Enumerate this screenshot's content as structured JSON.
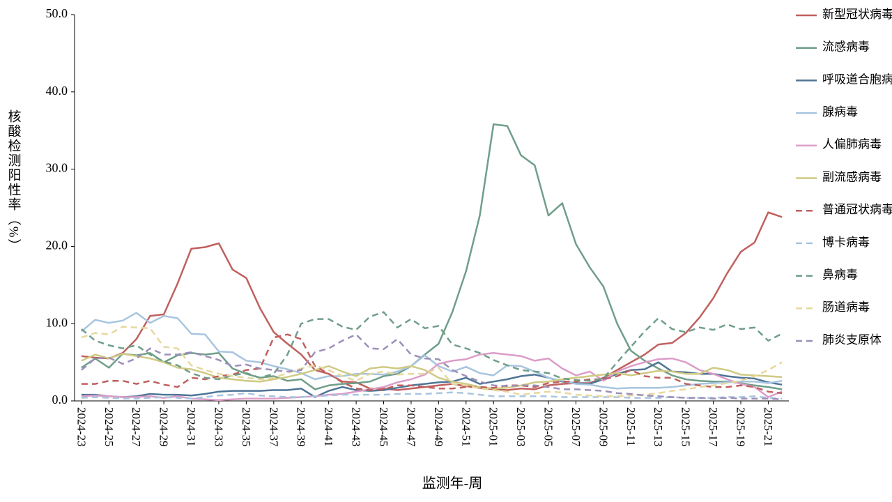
{
  "chart_data": {
    "type": "line",
    "x_label": "监测年-周",
    "y_label": "核酸检测阳性率（%）",
    "categories": [
      "2024-23",
      null,
      "2024-25",
      null,
      "2024-27",
      null,
      "2024-29",
      null,
      "2024-31",
      null,
      "2024-33",
      null,
      "2024-35",
      null,
      "2024-37",
      null,
      "2024-39",
      null,
      "2024-41",
      null,
      "2024-43",
      null,
      "2024-45",
      null,
      "2024-47",
      null,
      "2024-49",
      null,
      "2024-51",
      null,
      "2025-01",
      null,
      "2025-03",
      null,
      "2025-05",
      null,
      "2025-07",
      null,
      "2025-09",
      null,
      "2025-11",
      null,
      "2025-13",
      null,
      "2025-15",
      null,
      "2025-17",
      null,
      "2025-19",
      null,
      "2025-21",
      null
    ],
    "ylim": [
      0,
      50
    ],
    "yticks": [
      {
        "value": 0,
        "label": "0.0"
      },
      {
        "value": 10,
        "label": "10.0"
      },
      {
        "value": 20,
        "label": "20.0"
      },
      {
        "value": 30,
        "label": "30.0"
      },
      {
        "value": 40,
        "label": "40.0"
      },
      {
        "value": 50,
        "label": "50.0"
      }
    ],
    "grid": false,
    "legend": "right",
    "series": [
      {
        "name": "新型冠状病毒",
        "color": "#c0605e",
        "dashed": false,
        "values": [
          5.8,
          5.6,
          5.5,
          6.2,
          8.0,
          11.0,
          11.2,
          15.2,
          19.7,
          19.9,
          20.4,
          17.0,
          15.9,
          12.0,
          8.9,
          7.4,
          6.0,
          4.0,
          3.5,
          2.5,
          2.4,
          1.6,
          1.6,
          1.4,
          1.6,
          1.8,
          2.0,
          2.2,
          1.9,
          1.7,
          1.5,
          1.4,
          1.6,
          1.5,
          2.0,
          2.2,
          2.3,
          2.3,
          3.0,
          4.0,
          5.0,
          6.0,
          7.3,
          7.5,
          8.8,
          10.8,
          13.3,
          16.5,
          19.3,
          20.5,
          24.4,
          23.8
        ]
      },
      {
        "name": "流感病毒",
        "color": "#6f9e89",
        "dashed": false,
        "values": [
          4.3,
          5.5,
          4.3,
          6.1,
          5.9,
          6.2,
          5.0,
          5.9,
          6.2,
          6.0,
          6.2,
          4.2,
          3.5,
          3.0,
          3.2,
          2.6,
          2.8,
          1.5,
          2.0,
          2.2,
          2.3,
          2.5,
          3.2,
          3.5,
          4.5,
          6.0,
          7.4,
          11.5,
          16.8,
          24.0,
          35.8,
          35.6,
          31.8,
          30.5,
          24.0,
          25.6,
          20.3,
          17.3,
          14.8,
          10.0,
          6.5,
          5.2,
          4.2,
          3.3,
          2.8,
          2.6,
          2.5,
          2.5,
          2.3,
          2.0,
          1.8,
          1.5
        ]
      },
      {
        "name": "呼吸道合胞病毒",
        "color": "#4f7596",
        "dashed": false,
        "values": [
          0.8,
          0.8,
          0.6,
          0.5,
          0.6,
          0.9,
          0.8,
          0.8,
          0.7,
          0.9,
          1.2,
          1.3,
          1.3,
          1.3,
          1.4,
          1.4,
          1.6,
          0.5,
          1.3,
          1.8,
          1.4,
          1.3,
          1.4,
          1.7,
          2.0,
          2.2,
          2.4,
          2.5,
          3.0,
          2.2,
          2.5,
          2.8,
          3.2,
          3.4,
          3.0,
          2.5,
          2.3,
          2.2,
          2.8,
          3.5,
          4.0,
          4.1,
          5.0,
          3.8,
          3.7,
          3.5,
          3.5,
          3.2,
          3.0,
          2.9,
          2.4,
          2.1
        ]
      },
      {
        "name": "腺病毒",
        "color": "#a8c5e0",
        "dashed": false,
        "values": [
          9.0,
          10.5,
          10.1,
          10.4,
          11.4,
          10.1,
          11.0,
          10.7,
          8.7,
          8.6,
          6.4,
          6.3,
          5.2,
          5.0,
          4.5,
          4.1,
          3.6,
          2.8,
          3.2,
          3.2,
          3.5,
          3.5,
          3.4,
          3.8,
          4.5,
          5.9,
          4.5,
          3.8,
          4.4,
          3.6,
          3.3,
          4.6,
          4.5,
          3.8,
          3.0,
          2.6,
          2.2,
          2.1,
          1.8,
          1.6,
          1.7,
          1.7,
          1.7,
          1.8,
          2.0,
          2.2,
          2.3,
          2.4,
          2.5,
          2.5,
          2.3,
          2.6
        ]
      },
      {
        "name": "人偏肺病毒",
        "color": "#dc9dc8",
        "dashed": false,
        "values": [
          0.6,
          0.7,
          0.6,
          0.5,
          0.5,
          0.6,
          0.4,
          0.6,
          0.3,
          0.2,
          0.1,
          0.2,
          0.3,
          0.3,
          0.3,
          0.4,
          0.5,
          0.6,
          0.8,
          0.9,
          1.2,
          1.5,
          1.8,
          2.4,
          2.8,
          3.4,
          4.8,
          5.2,
          5.4,
          6.0,
          6.2,
          6.0,
          5.8,
          5.2,
          5.5,
          4.2,
          3.3,
          3.8,
          2.6,
          3.8,
          4.5,
          5.0,
          5.4,
          5.5,
          5.0,
          4.0,
          3.5,
          2.8,
          2.2,
          1.8,
          0.5,
          1.2
        ]
      },
      {
        "name": "副流感病毒",
        "color": "#cfca83",
        "dashed": false,
        "values": [
          5.2,
          6.0,
          5.5,
          6.1,
          5.8,
          5.5,
          5.0,
          4.3,
          4.1,
          3.6,
          3.0,
          2.8,
          2.6,
          2.5,
          2.8,
          3.1,
          3.5,
          4.0,
          4.5,
          3.8,
          3.2,
          4.2,
          4.4,
          4.2,
          4.5,
          4.0,
          3.0,
          2.5,
          2.2,
          1.8,
          1.6,
          1.7,
          2.0,
          2.4,
          2.5,
          2.8,
          3.0,
          3.2,
          3.4,
          3.6,
          3.3,
          3.6,
          3.9,
          3.8,
          3.5,
          3.5,
          4.3,
          4.0,
          3.4,
          3.3,
          3.2,
          3.1
        ]
      },
      {
        "name": "普通冠状病毒",
        "color": "#c0605e",
        "dashed": true,
        "values": [
          2.2,
          2.2,
          2.6,
          2.6,
          2.2,
          2.6,
          2.1,
          1.8,
          3.0,
          2.8,
          3.2,
          3.4,
          4.0,
          4.2,
          8.2,
          8.6,
          8.0,
          4.5,
          3.5,
          2.4,
          1.6,
          1.4,
          1.5,
          2.0,
          2.0,
          1.8,
          1.6,
          1.6,
          1.8,
          1.8,
          1.7,
          2.0,
          2.0,
          1.8,
          2.3,
          2.5,
          2.5,
          2.8,
          2.8,
          3.2,
          4.0,
          3.2,
          3.0,
          3.0,
          2.2,
          2.0,
          1.8,
          1.8,
          2.0,
          1.8,
          1.2,
          1.0
        ]
      },
      {
        "name": "博卡病毒",
        "color": "#a8c5e0",
        "dashed": true,
        "values": [
          0.4,
          0.5,
          0.4,
          0.3,
          0.3,
          0.4,
          0.5,
          0.4,
          0.3,
          0.5,
          0.7,
          0.8,
          1.0,
          0.7,
          0.6,
          0.5,
          0.5,
          0.6,
          0.7,
          0.8,
          0.8,
          0.8,
          0.8,
          0.9,
          0.9,
          0.9,
          1.0,
          1.1,
          1.0,
          0.8,
          0.6,
          0.6,
          0.6,
          0.6,
          0.6,
          0.5,
          0.5,
          0.5,
          0.5,
          0.5,
          0.4,
          0.4,
          0.4,
          0.5,
          0.4,
          0.4,
          0.4,
          0.5,
          0.5,
          0.6,
          0.4,
          0.3
        ]
      },
      {
        "name": "鼻病毒",
        "color": "#6f9e89",
        "dashed": true,
        "values": [
          9.3,
          7.8,
          7.2,
          6.8,
          7.2,
          6.0,
          5.1,
          4.6,
          3.6,
          3.0,
          2.8,
          3.3,
          3.6,
          3.0,
          3.5,
          6.0,
          10.0,
          10.6,
          10.6,
          9.6,
          9.2,
          10.9,
          11.5,
          9.5,
          10.6,
          9.4,
          9.7,
          7.3,
          6.8,
          6.2,
          5.3,
          4.6,
          4.0,
          3.8,
          3.6,
          2.9,
          2.7,
          2.6,
          2.9,
          5.0,
          7.0,
          9.0,
          10.7,
          9.3,
          8.9,
          9.5,
          9.2,
          9.9,
          9.3,
          9.5,
          7.8,
          8.7
        ]
      },
      {
        "name": "肠道病毒",
        "color": "#e6d89c",
        "dashed": true,
        "values": [
          8.2,
          8.8,
          8.6,
          9.6,
          9.5,
          9.4,
          7.0,
          6.8,
          4.6,
          4.0,
          3.5,
          3.2,
          3.0,
          2.8,
          3.0,
          3.6,
          4.2,
          4.6,
          4.0,
          3.2,
          2.6,
          3.5,
          3.8,
          3.4,
          3.5,
          3.5,
          4.3,
          2.2,
          2.0,
          1.6,
          1.4,
          1.2,
          0.8,
          1.0,
          1.2,
          1.1,
          0.8,
          0.7,
          0.6,
          0.6,
          0.7,
          0.8,
          1.0,
          1.3,
          1.5,
          1.8,
          2.0,
          2.3,
          2.6,
          3.2,
          4.0,
          5.0
        ]
      },
      {
        "name": "肺炎支原体",
        "color": "#9d8fb8",
        "dashed": true,
        "values": [
          4.0,
          5.5,
          5.6,
          4.8,
          5.5,
          6.8,
          6.0,
          6.0,
          6.3,
          5.8,
          5.3,
          4.5,
          4.7,
          4.2,
          4.0,
          3.8,
          4.0,
          6.3,
          6.8,
          7.8,
          8.6,
          6.8,
          6.7,
          8.0,
          6.0,
          5.5,
          5.4,
          4.0,
          3.2,
          2.5,
          2.0,
          1.9,
          2.0,
          2.0,
          1.8,
          1.5,
          1.5,
          1.4,
          1.3,
          1.0,
          0.9,
          0.7,
          0.6,
          0.5,
          0.4,
          0.4,
          0.3,
          0.4,
          0.3,
          0.3,
          0.3,
          0.2
        ]
      }
    ]
  }
}
